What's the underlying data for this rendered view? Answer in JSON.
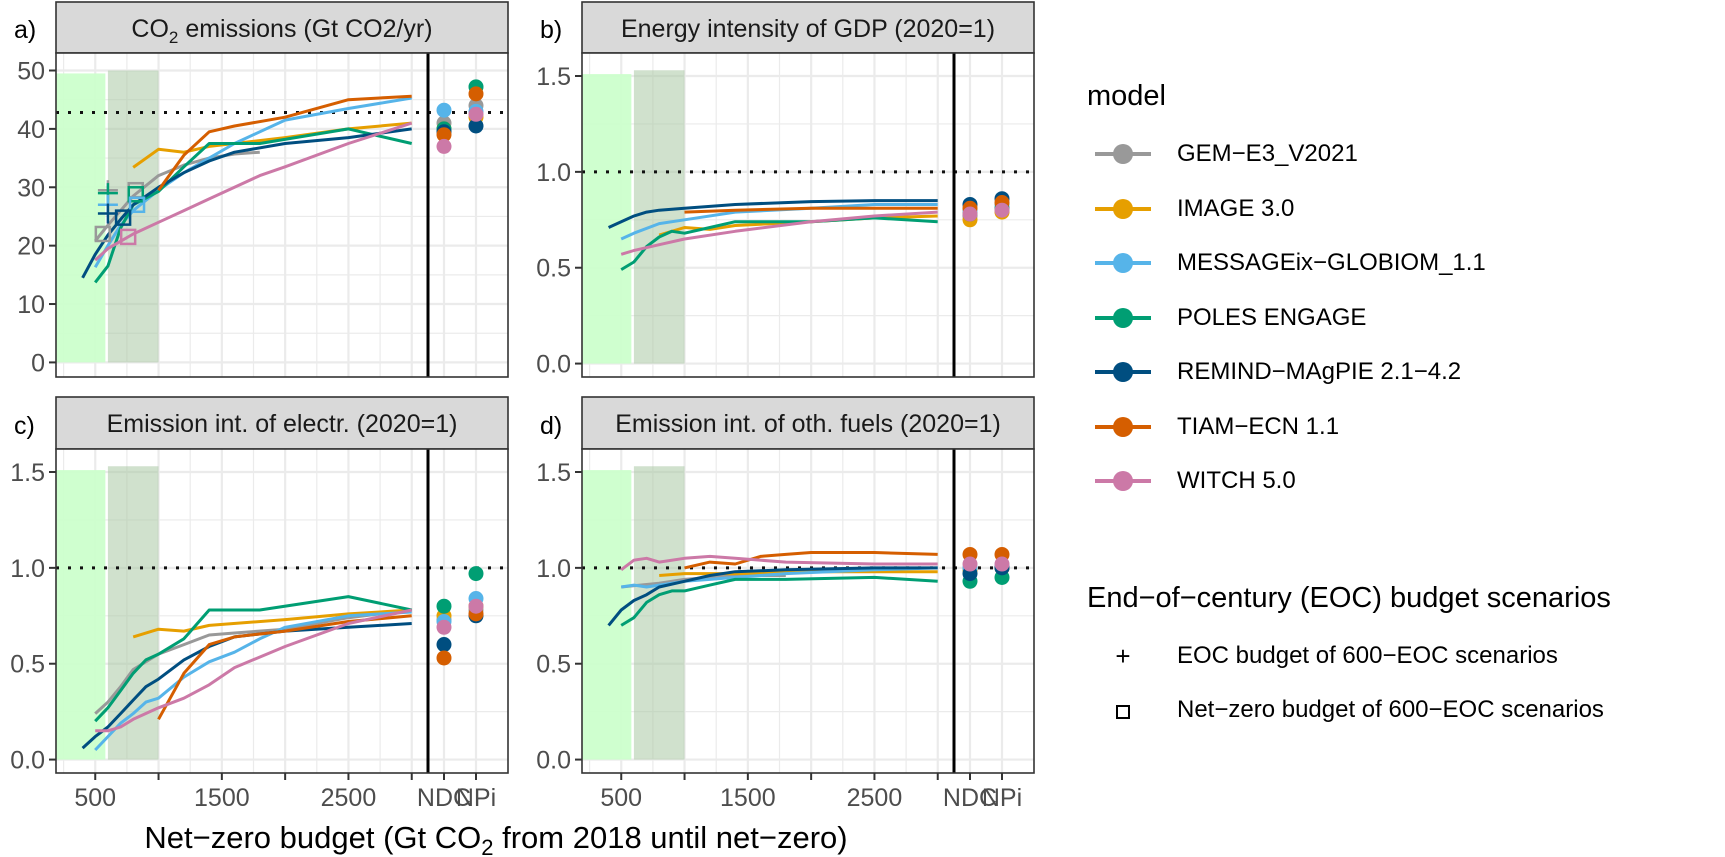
{
  "figure": {
    "xlabel_pre": "Net−zero budget (Gt CO",
    "xlabel_sub": "2",
    "xlabel_post": " from 2018 until net−zero)"
  },
  "legend_model": {
    "title": "model",
    "items": [
      {
        "label": "GEM−E3_V2021",
        "color": "#999999"
      },
      {
        "label": "IMAGE 3.0",
        "color": "#E69F00"
      },
      {
        "label": "MESSAGEix−GLOBIOM_1.1",
        "color": "#56B4E9"
      },
      {
        "label": "POLES ENGAGE",
        "color": "#009E73"
      },
      {
        "label": "REMIND−MAgPIE 2.1−4.2",
        "color": "#004E80"
      },
      {
        "label": "TIAM−ECN 1.1",
        "color": "#D55E00"
      },
      {
        "label": "WITCH 5.0",
        "color": "#CC79A7"
      }
    ]
  },
  "legend_shape": {
    "title": "End−of−century (EOC) budget scenarios",
    "items": [
      {
        "label": "EOC budget of 600−EOC scenarios",
        "symbol": "+"
      },
      {
        "label": "Net−zero budget of 600−EOC scenarios",
        "symbol": "square"
      }
    ]
  },
  "chart_data": [
    {
      "panel": "a)",
      "type": "line",
      "title_pre": "CO",
      "title_sub": "2",
      "title_post": " emissions (Gt CO2/yr)",
      "xlabel": "Net−zero budget (Gt CO2 from 2018 until net−zero)",
      "ylabel": "",
      "x_ticks": [
        "500",
        "1500",
        "2500",
        "NDC",
        "NPi"
      ],
      "xlim": [
        190,
        3770
      ],
      "ylim": [
        -2.5,
        53
      ],
      "y_ticks": [
        "0",
        "10",
        "20",
        "30",
        "40",
        "50"
      ],
      "y_tick_values": [
        0,
        10,
        20,
        30,
        40,
        50
      ],
      "reference_line": 42.8,
      "shaded_regions": [
        {
          "x": [
            190,
            580
          ],
          "y": [
            0,
            49.5
          ],
          "color": "#ccffcc"
        },
        {
          "x": [
            600,
            1000
          ],
          "y": [
            0,
            50
          ],
          "color": "#a9c9a4"
        }
      ],
      "series": [
        {
          "name": "GEM−E3_V2021",
          "x": [
            500,
            600,
            700,
            800,
            1000,
            1200,
            1400,
            1600,
            1800
          ],
          "y": [
            20.8,
            23.5,
            26.0,
            28.5,
            32.0,
            33.8,
            35.0,
            35.7,
            36.0
          ],
          "ndc": 41.0,
          "npi": 44.0
        },
        {
          "name": "IMAGE 3.0",
          "x": [
            800,
            1000,
            1200,
            1400,
            2000,
            2500,
            3000
          ],
          "y": [
            33.4,
            36.5,
            36.0,
            37.0,
            38.5,
            40.0,
            41.0
          ],
          "ndc": 40.0,
          "npi": 42.0
        },
        {
          "name": "MESSAGEix−GLOBIOM_1.1",
          "x": [
            500,
            600,
            700,
            800,
            1000,
            1200,
            1400,
            1600,
            2000,
            2500,
            3000
          ],
          "y": [
            16.3,
            20.0,
            23.5,
            26.0,
            29.5,
            32.5,
            35.0,
            37.5,
            41.5,
            43.5,
            45.3
          ],
          "ndc": 43.2,
          "npi": 43.0
        },
        {
          "name": "POLES ENGAGE",
          "x": [
            500,
            600,
            700,
            800,
            1000,
            1200,
            1400,
            1800,
            2500,
            3000
          ],
          "y": [
            13.7,
            16.5,
            23.0,
            27.0,
            29.3,
            33.5,
            37.5,
            37.5,
            40.0,
            37.5
          ],
          "ndc": 40.0,
          "npi": 47.2
        },
        {
          "name": "REMIND−MAgPIE 2.1−4.2",
          "x": [
            400,
            500,
            600,
            700,
            800,
            1000,
            1200,
            1400,
            1600,
            2000,
            2500,
            3000
          ],
          "y": [
            14.5,
            18.5,
            21.8,
            24.5,
            27.0,
            30.0,
            32.5,
            34.5,
            36.0,
            37.5,
            38.5,
            40.0
          ],
          "ndc": 39.5,
          "npi": 40.5
        },
        {
          "name": "TIAM−ECN 1.1",
          "x": [
            1000,
            1200,
            1400,
            1600,
            2000,
            2500,
            3000
          ],
          "y": [
            29.5,
            35.5,
            39.5,
            40.5,
            42.0,
            45.0,
            45.6
          ],
          "ndc": 39.0,
          "npi": 46.0
        },
        {
          "name": "WITCH 5.0",
          "x": [
            500,
            600,
            800,
            1000,
            1200,
            1400,
            1600,
            1800,
            2000,
            2500,
            3000
          ],
          "y": [
            17.5,
            19.5,
            22.0,
            24.0,
            26.0,
            28.0,
            30.0,
            32.0,
            33.5,
            37.5,
            41.0
          ],
          "ndc": 37.0,
          "npi": 42.5
        }
      ],
      "eoc_crosses": [
        {
          "name": "GEM−E3_V2021",
          "x": 600,
          "y": 29.5
        },
        {
          "name": "POLES ENGAGE",
          "x": 600,
          "y": 29.0
        },
        {
          "name": "MESSAGEix−GLOBIOM_1.1",
          "x": 600,
          "y": 27.0
        },
        {
          "name": "REMIND−MAgPIE 2.1−4.2",
          "x": 600,
          "y": 25.5
        }
      ],
      "netzero_squares": [
        {
          "name": "GEM−E3_V2021",
          "x": 820,
          "y": 29.5
        },
        {
          "name": "POLES ENGAGE",
          "x": 820,
          "y": 28.8
        },
        {
          "name": "MESSAGEix−GLOBIOM_1.1",
          "x": 830,
          "y": 27.0
        },
        {
          "name": "REMIND−MAgPIE 2.1−4.2",
          "x": 720,
          "y": 24.8
        },
        {
          "name": "WITCH 5.0",
          "x": 760,
          "y": 21.5
        },
        {
          "name": "GEM−E3_V2021",
          "x": 560,
          "y": 22.0
        }
      ]
    },
    {
      "panel": "b)",
      "type": "line",
      "title_pre": "Energy intensity of GDP (2020=1)",
      "title_sub": "",
      "title_post": "",
      "xlabel": "Net−zero budget (Gt CO2 from 2018 until net−zero)",
      "ylabel": "",
      "x_ticks": [
        "500",
        "1500",
        "2500",
        "NDC",
        "NPi"
      ],
      "xlim": [
        190,
        3770
      ],
      "ylim": [
        -0.07,
        1.62
      ],
      "y_ticks": [
        "0.0",
        "0.5",
        "1.0",
        "1.5"
      ],
      "y_tick_values": [
        0,
        0.5,
        1.0,
        1.5
      ],
      "reference_line": 1.0,
      "shaded_regions": [
        {
          "x": [
            190,
            580
          ],
          "y": [
            0,
            1.51
          ],
          "color": "#ccffcc"
        },
        {
          "x": [
            600,
            1000
          ],
          "y": [
            0,
            1.53
          ],
          "color": "#a9c9a4"
        }
      ],
      "series": [
        {
          "name": "GEM−E3_V2021",
          "x": [],
          "y": [],
          "ndc": 0.77,
          "npi": 0.8
        },
        {
          "name": "IMAGE 3.0",
          "x": [
            800,
            1000,
            1200,
            1400,
            2000,
            2500,
            3000
          ],
          "y": [
            0.67,
            0.71,
            0.7,
            0.72,
            0.74,
            0.76,
            0.77
          ],
          "ndc": 0.75,
          "npi": 0.79
        },
        {
          "name": "MESSAGEix−GLOBIOM_1.1",
          "x": [
            500,
            600,
            800,
            1000,
            1400,
            2000,
            2500,
            3000
          ],
          "y": [
            0.65,
            0.68,
            0.73,
            0.75,
            0.79,
            0.81,
            0.83,
            0.83
          ],
          "ndc": 0.8,
          "npi": 0.83
        },
        {
          "name": "POLES ENGAGE",
          "x": [
            500,
            600,
            700,
            800,
            900,
            1000,
            1200,
            1400,
            2000,
            2500,
            3000
          ],
          "y": [
            0.49,
            0.53,
            0.61,
            0.66,
            0.69,
            0.68,
            0.71,
            0.74,
            0.74,
            0.76,
            0.74
          ],
          "ndc": 0.78,
          "npi": 0.81
        },
        {
          "name": "REMIND−MAgPIE 2.1−4.2",
          "x": [
            400,
            500,
            600,
            700,
            800,
            1000,
            1200,
            1400,
            2000,
            2500,
            3000
          ],
          "y": [
            0.71,
            0.74,
            0.77,
            0.79,
            0.8,
            0.81,
            0.82,
            0.83,
            0.845,
            0.85,
            0.85
          ],
          "ndc": 0.83,
          "npi": 0.86
        },
        {
          "name": "TIAM−ECN 1.1",
          "x": [
            1000,
            1400,
            2000,
            2500,
            3000
          ],
          "y": [
            0.79,
            0.8,
            0.81,
            0.81,
            0.81
          ],
          "ndc": 0.81,
          "npi": 0.84
        },
        {
          "name": "WITCH 5.0",
          "x": [
            500,
            600,
            800,
            1000,
            1400,
            2000,
            2500,
            3000
          ],
          "y": [
            0.57,
            0.59,
            0.62,
            0.65,
            0.69,
            0.74,
            0.77,
            0.79
          ],
          "ndc": 0.78,
          "npi": 0.8
        }
      ]
    },
    {
      "panel": "c)",
      "type": "line",
      "title_pre": "Emission int. of electr. (2020=1)",
      "title_sub": "",
      "title_post": "",
      "xlabel": "Net−zero budget (Gt CO2 from 2018 until net−zero)",
      "ylabel": "",
      "x_ticks": [
        "500",
        "1500",
        "2500",
        "NDC",
        "NPi"
      ],
      "xlim": [
        190,
        3770
      ],
      "ylim": [
        -0.07,
        1.62
      ],
      "y_ticks": [
        "0.0",
        "0.5",
        "1.0",
        "1.5"
      ],
      "y_tick_values": [
        0,
        0.5,
        1.0,
        1.5
      ],
      "reference_line": 1.0,
      "shaded_regions": [
        {
          "x": [
            190,
            580
          ],
          "y": [
            0,
            1.51
          ],
          "color": "#ccffcc"
        },
        {
          "x": [
            600,
            1000
          ],
          "y": [
            0,
            1.53
          ],
          "color": "#a9c9a4"
        }
      ],
      "series": [
        {
          "name": "GEM−E3_V2021",
          "x": [
            500,
            600,
            700,
            800,
            1000,
            1200,
            1400,
            1600,
            2000,
            2500,
            3000
          ],
          "y": [
            0.24,
            0.3,
            0.38,
            0.47,
            0.55,
            0.6,
            0.65,
            0.66,
            0.68,
            0.74,
            0.78
          ],
          "ndc": 0.73,
          "npi": 0.78
        },
        {
          "name": "IMAGE 3.0",
          "x": [
            800,
            1000,
            1200,
            1400,
            2000,
            2500,
            3000
          ],
          "y": [
            0.64,
            0.68,
            0.67,
            0.7,
            0.73,
            0.76,
            0.78
          ],
          "ndc": 0.75,
          "npi": 0.8
        },
        {
          "name": "MESSAGEix−GLOBIOM_1.1",
          "x": [
            500,
            600,
            700,
            800,
            900,
            1000,
            1200,
            1400,
            1600,
            1800,
            2000,
            2500,
            3000
          ],
          "y": [
            0.05,
            0.12,
            0.19,
            0.24,
            0.3,
            0.32,
            0.43,
            0.51,
            0.56,
            0.63,
            0.69,
            0.75,
            0.77
          ],
          "ndc": 0.72,
          "npi": 0.84
        },
        {
          "name": "POLES ENGAGE",
          "x": [
            500,
            600,
            700,
            800,
            900,
            1000,
            1200,
            1400,
            1800,
            2500,
            3000
          ],
          "y": [
            0.2,
            0.27,
            0.36,
            0.45,
            0.52,
            0.55,
            0.63,
            0.78,
            0.78,
            0.85,
            0.78
          ],
          "ndc": 0.8,
          "npi": 0.97
        },
        {
          "name": "REMIND−MAgPIE 2.1−4.2",
          "x": [
            400,
            500,
            600,
            700,
            800,
            900,
            1000,
            1200,
            1400,
            1600,
            2000,
            2500,
            3000
          ],
          "y": [
            0.06,
            0.12,
            0.17,
            0.24,
            0.31,
            0.38,
            0.42,
            0.52,
            0.59,
            0.64,
            0.67,
            0.69,
            0.71
          ],
          "ndc": 0.6,
          "npi": 0.75
        },
        {
          "name": "TIAM−ECN 1.1",
          "x": [
            1000,
            1200,
            1400,
            1600,
            2000,
            2500,
            3000
          ],
          "y": [
            0.21,
            0.45,
            0.6,
            0.64,
            0.67,
            0.72,
            0.75
          ],
          "ndc": 0.53,
          "npi": 0.76
        },
        {
          "name": "WITCH 5.0",
          "x": [
            500,
            600,
            700,
            800,
            1000,
            1200,
            1400,
            1600,
            2000,
            2500,
            3000
          ],
          "y": [
            0.15,
            0.15,
            0.17,
            0.21,
            0.27,
            0.32,
            0.39,
            0.48,
            0.59,
            0.71,
            0.78
          ],
          "ndc": 0.69,
          "npi": 0.8
        }
      ]
    },
    {
      "panel": "d)",
      "type": "line",
      "title_pre": "Emission int. of oth. fuels (2020=1)",
      "title_sub": "",
      "title_post": "",
      "xlabel": "Net−zero budget (Gt CO2 from 2018 until net−zero)",
      "ylabel": "",
      "x_ticks": [
        "500",
        "1500",
        "2500",
        "NDC",
        "NPi"
      ],
      "xlim": [
        190,
        3770
      ],
      "ylim": [
        -0.07,
        1.62
      ],
      "y_ticks": [
        "0.0",
        "0.5",
        "1.0",
        "1.5"
      ],
      "y_tick_values": [
        0,
        0.5,
        1.0,
        1.5
      ],
      "reference_line": 1.0,
      "shaded_regions": [
        {
          "x": [
            190,
            580
          ],
          "y": [
            0,
            1.51
          ],
          "color": "#ccffcc"
        },
        {
          "x": [
            600,
            1000
          ],
          "y": [
            0,
            1.53
          ],
          "color": "#a9c9a4"
        }
      ],
      "series": [
        {
          "name": "GEM−E3_V2021",
          "x": [
            500,
            800,
            1000,
            1400,
            1800
          ],
          "y": [
            0.9,
            0.92,
            0.94,
            0.96,
            0.96
          ],
          "ndc": 0.99,
          "npi": 1.0
        },
        {
          "name": "IMAGE 3.0",
          "x": [
            800,
            1000,
            1400,
            2000,
            2500,
            3000
          ],
          "y": [
            0.96,
            0.97,
            0.97,
            0.98,
            0.98,
            0.98
          ],
          "ndc": 0.99,
          "npi": 1.0
        },
        {
          "name": "MESSAGEix−GLOBIOM_1.1",
          "x": [
            500,
            600,
            700,
            800,
            1000,
            1200,
            1400,
            1800,
            2500,
            3000
          ],
          "y": [
            0.9,
            0.91,
            0.9,
            0.91,
            0.93,
            0.94,
            0.95,
            0.97,
            0.99,
            1.0
          ],
          "ndc": 1.0,
          "npi": 1.01
        },
        {
          "name": "POLES ENGAGE",
          "x": [
            500,
            600,
            700,
            800,
            900,
            1000,
            1200,
            1400,
            1800,
            2500,
            3000
          ],
          "y": [
            0.7,
            0.74,
            0.82,
            0.86,
            0.88,
            0.88,
            0.91,
            0.94,
            0.94,
            0.95,
            0.93
          ],
          "ndc": 0.93,
          "npi": 0.95
        },
        {
          "name": "REMIND−MAgPIE 2.1−4.2",
          "x": [
            400,
            500,
            600,
            700,
            800,
            1000,
            1200,
            1400,
            1800,
            2500,
            3000
          ],
          "y": [
            0.7,
            0.78,
            0.83,
            0.86,
            0.9,
            0.93,
            0.96,
            0.98,
            0.99,
            1.0,
            1.0
          ],
          "ndc": 0.97,
          "npi": 1.0
        },
        {
          "name": "TIAM−ECN 1.1",
          "x": [
            1000,
            1200,
            1400,
            1600,
            1800,
            2000,
            2500,
            3000
          ],
          "y": [
            1.0,
            1.03,
            1.02,
            1.06,
            1.07,
            1.08,
            1.08,
            1.07
          ],
          "ndc": 1.07,
          "npi": 1.07
        },
        {
          "name": "WITCH 5.0",
          "x": [
            500,
            600,
            700,
            800,
            1000,
            1200,
            1400,
            1800,
            2500,
            3000
          ],
          "y": [
            0.99,
            1.04,
            1.05,
            1.03,
            1.05,
            1.06,
            1.05,
            1.03,
            1.02,
            1.02
          ],
          "ndc": 1.02,
          "npi": 1.02
        }
      ]
    }
  ]
}
